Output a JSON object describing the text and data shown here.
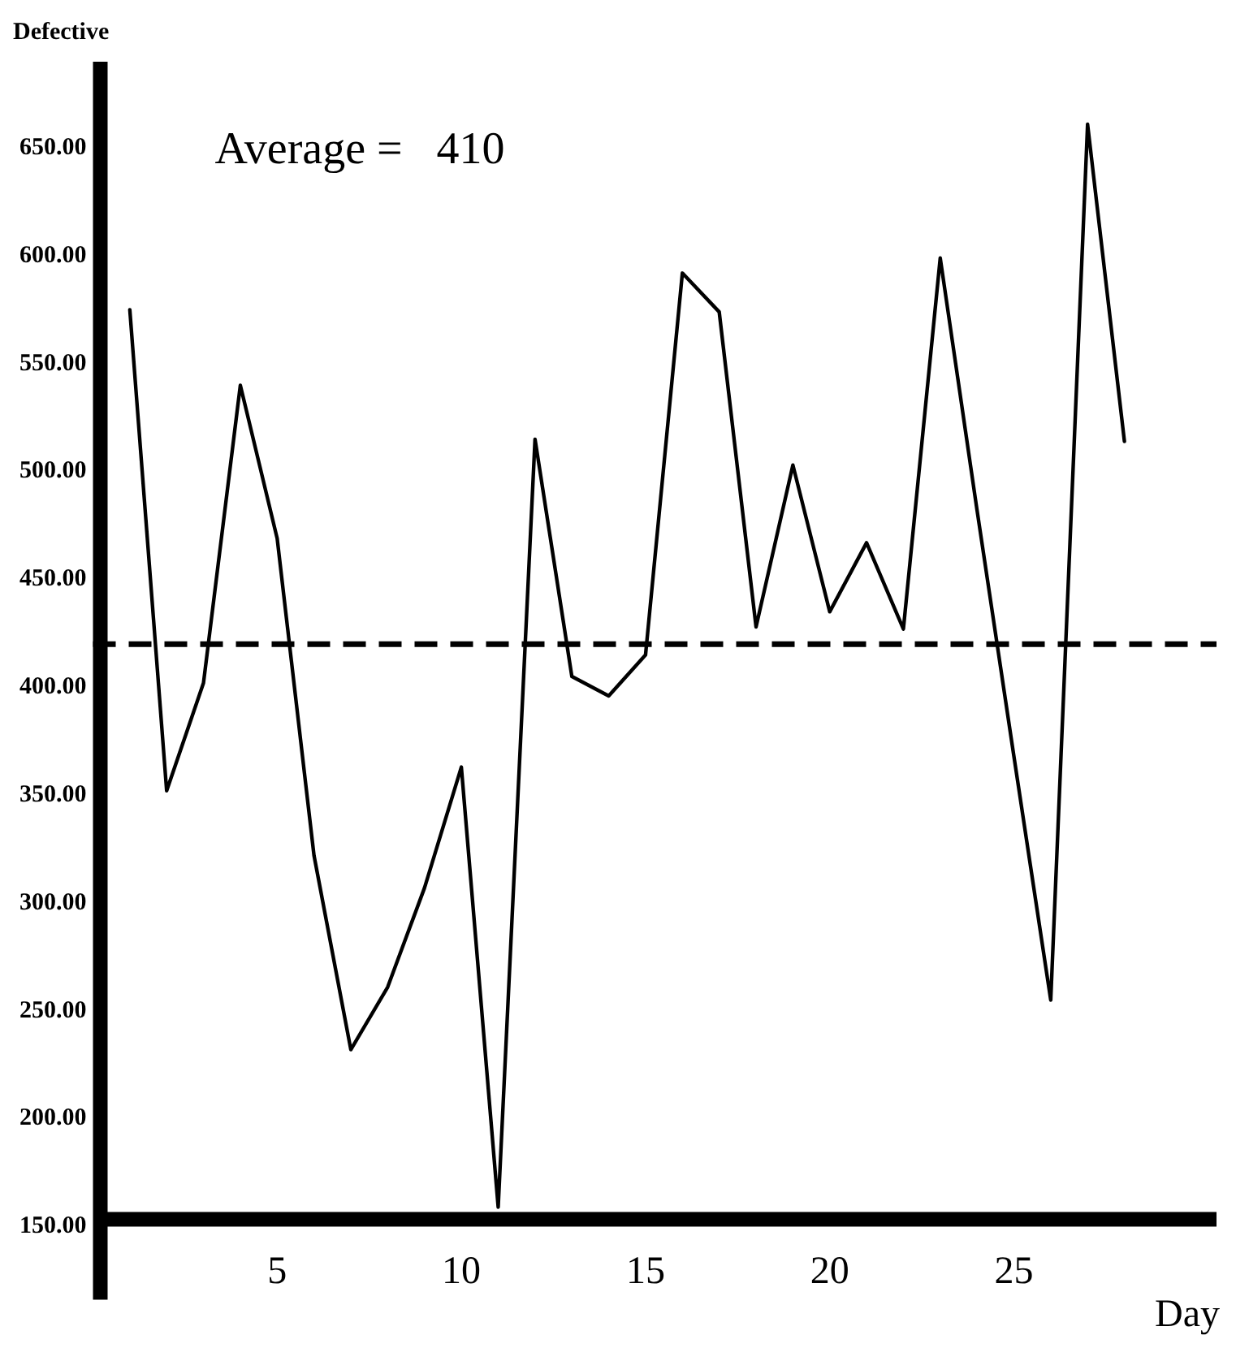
{
  "chart_data": {
    "type": "line",
    "xlabel": "Day",
    "ylabel": "Defective",
    "x": [
      1,
      2,
      3,
      4,
      5,
      6,
      7,
      8,
      9,
      10,
      11,
      12,
      13,
      14,
      15,
      16,
      17,
      18,
      19,
      20,
      21,
      22,
      23,
      24,
      25,
      26,
      27,
      28
    ],
    "values": [
      575,
      352,
      402,
      540,
      469,
      322,
      232,
      261,
      307,
      363,
      159,
      515,
      405,
      396,
      415,
      592,
      574,
      428,
      503,
      435,
      467,
      427,
      599,
      482,
      368,
      255,
      661,
      514
    ],
    "color": "#000000",
    "xlim": [
      0,
      30.5
    ],
    "xticks": [
      5,
      10,
      15,
      20,
      25
    ],
    "ylim": [
      150,
      690
    ],
    "yticks": [
      {
        "value": 150,
        "label": "150.00"
      },
      {
        "value": 200,
        "label": "200.00"
      },
      {
        "value": 250,
        "label": "250.00"
      },
      {
        "value": 300,
        "label": "300.00"
      },
      {
        "value": 350,
        "label": "350.00"
      },
      {
        "value": 400,
        "label": "400.00"
      },
      {
        "value": 450,
        "label": "450.00"
      },
      {
        "value": 500,
        "label": "500.00"
      },
      {
        "value": 550,
        "label": "550.00"
      },
      {
        "value": 600,
        "label": "600.00"
      },
      {
        "value": 650,
        "label": "650.00"
      }
    ],
    "ref_lines": [
      {
        "axis": "y",
        "value": 420,
        "color": "#000000",
        "line_style": "dashed"
      }
    ],
    "annotations": [
      "Average =   410"
    ],
    "grid": false,
    "legend": false,
    "marker": "none",
    "line_style": "solid"
  }
}
